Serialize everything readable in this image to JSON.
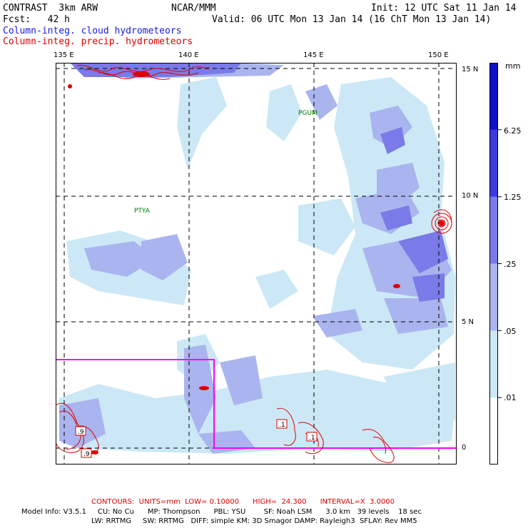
{
  "header": {
    "model": "CONTRAST  3km ARW",
    "center": "NCAR/MMM",
    "init": "Init: 12 UTC Sat 11 Jan 14",
    "fcst": "Fcst:   42 h",
    "valid": "Valid: 06 UTC Mon 13 Jan 14 (16 ChT Mon 13 Jan 14)",
    "field_cloud": "Column-integ. cloud hydrometeors",
    "field_precip": "Column-integ. precip. hydrometeors"
  },
  "map": {
    "lon_labels": [
      "135 E",
      "140 E",
      "145 E",
      "150 E"
    ],
    "lat_labels": [
      "15 N",
      "10 N",
      "5 N",
      "0"
    ],
    "stations": [
      "PGUM",
      "PTYA"
    ],
    "contour_labels": [
      ".9",
      ".9",
      ".1",
      ".1"
    ]
  },
  "legend": {
    "units": "mm",
    "levels": [
      "6.25",
      "1.25",
      ".25",
      ".05",
      ".01"
    ],
    "colors": [
      "#1010c8",
      "#3a3ae0",
      "#7a7ae8",
      "#aab4ee",
      "#cce8f6",
      "#ffffff"
    ]
  },
  "footer": {
    "contours": "CONTOURS:  UNITS=mm  LOW= 0.10000      HIGH=  24.300      INTERVAL=X  3.0000",
    "model_info_1": "Model Info: V3.5.1     CU: No Cu      MP: Thompson      PBL: YSU        SF: Noah LSM      3.0 km   39 levels    18 sec",
    "model_info_2": "LW: RRTMG     SW: RRTMG   DIFF: simple KM: 3D Smagor DAMP: Rayleigh3  SFLAY: Rev MM5"
  }
}
